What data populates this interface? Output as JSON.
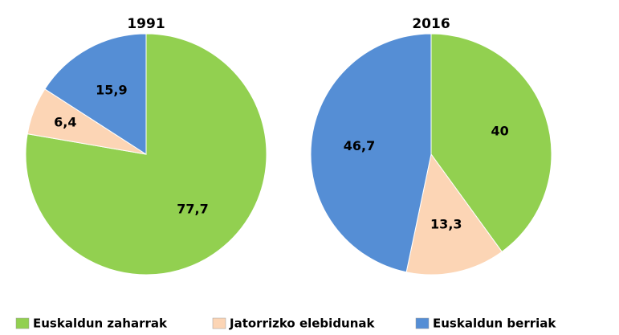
{
  "chart_data": [
    {
      "type": "pie",
      "title": "1991",
      "values": [
        77.7,
        6.4,
        15.9
      ],
      "value_labels": [
        "77,7",
        "6,4",
        "15,9"
      ]
    },
    {
      "type": "pie",
      "title": "2016",
      "values": [
        40,
        13.3,
        46.7
      ],
      "value_labels": [
        "40",
        "13,3",
        "46,7"
      ]
    }
  ],
  "legend": {
    "categories": [
      "Euskaldun zaharrak",
      "Jatorrizko elebidunak",
      "Euskaldun berriak"
    ],
    "colors": [
      "#92d050",
      "#fcd5b5",
      "#558ed5"
    ]
  }
}
